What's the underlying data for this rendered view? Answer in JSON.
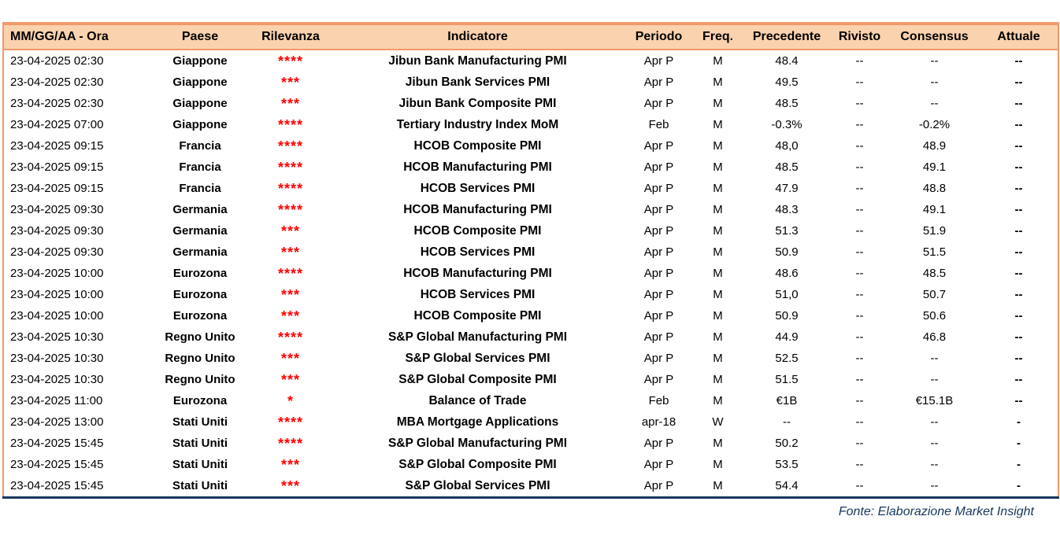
{
  "chart_data": {
    "type": "table",
    "columns": [
      "MM/GG/AA - Ora",
      "Paese",
      "Rilevanza",
      "Indicatore",
      "Periodo",
      "Freq.",
      "Precedente",
      "Rivisto",
      "Consensus",
      "Attuale"
    ],
    "rows": [
      [
        "23-04-2025 02:30",
        "Giappone",
        "****",
        "Jibun Bank Manufacturing PMI",
        "Apr P",
        "M",
        "48.4",
        "--",
        "--",
        "--"
      ],
      [
        "23-04-2025 02:30",
        "Giappone",
        "***",
        "Jibun Bank Services PMI",
        "Apr P",
        "M",
        "49.5",
        "--",
        "--",
        "--"
      ],
      [
        "23-04-2025 02:30",
        "Giappone",
        "***",
        "Jibun Bank Composite PMI",
        "Apr P",
        "M",
        "48.5",
        "--",
        "--",
        "--"
      ],
      [
        "23-04-2025 07:00",
        "Giappone",
        "****",
        "Tertiary Industry Index MoM",
        "Feb",
        "M",
        "-0.3%",
        "--",
        "-0.2%",
        "--"
      ],
      [
        "23-04-2025 09:15",
        "Francia",
        "****",
        "HCOB Composite PMI",
        "Apr P",
        "M",
        "48,0",
        "--",
        "48.9",
        "--"
      ],
      [
        "23-04-2025 09:15",
        "Francia",
        "****",
        "HCOB Manufacturing PMI",
        "Apr P",
        "M",
        "48.5",
        "--",
        "49.1",
        "--"
      ],
      [
        "23-04-2025 09:15",
        "Francia",
        "****",
        "HCOB Services PMI",
        "Apr P",
        "M",
        "47.9",
        "--",
        "48.8",
        "--"
      ],
      [
        "23-04-2025 09:30",
        "Germania",
        "****",
        "HCOB Manufacturing PMI",
        "Apr P",
        "M",
        "48.3",
        "--",
        "49.1",
        "--"
      ],
      [
        "23-04-2025 09:30",
        "Germania",
        "***",
        "HCOB Composite PMI",
        "Apr P",
        "M",
        "51.3",
        "--",
        "51.9",
        "--"
      ],
      [
        "23-04-2025 09:30",
        "Germania",
        "***",
        "HCOB Services PMI",
        "Apr P",
        "M",
        "50.9",
        "--",
        "51.5",
        "--"
      ],
      [
        "23-04-2025 10:00",
        "Eurozona",
        "****",
        "HCOB Manufacturing PMI",
        "Apr P",
        "M",
        "48.6",
        "--",
        "48.5",
        "--"
      ],
      [
        "23-04-2025 10:00",
        "Eurozona",
        "***",
        "HCOB Services PMI",
        "Apr P",
        "M",
        "51,0",
        "--",
        "50.7",
        "--"
      ],
      [
        "23-04-2025 10:00",
        "Eurozona",
        "***",
        "HCOB Composite PMI",
        "Apr P",
        "M",
        "50.9",
        "--",
        "50.6",
        "--"
      ],
      [
        "23-04-2025 10:30",
        "Regno Unito",
        "****",
        "S&P Global Manufacturing PMI",
        "Apr P",
        "M",
        "44.9",
        "--",
        "46.8",
        "--"
      ],
      [
        "23-04-2025 10:30",
        "Regno Unito",
        "***",
        "S&P Global Services PMI",
        "Apr P",
        "M",
        "52.5",
        "--",
        "--",
        "--"
      ],
      [
        "23-04-2025 10:30",
        "Regno Unito",
        "***",
        "S&P Global Composite PMI",
        "Apr P",
        "M",
        "51.5",
        "--",
        "--",
        "--"
      ],
      [
        "23-04-2025 11:00",
        "Eurozona",
        "*",
        "Balance of Trade",
        "Feb",
        "M",
        "€1B",
        "--",
        "€15.1B",
        "--"
      ],
      [
        "23-04-2025 13:00",
        "Stati Uniti",
        "****",
        "MBA Mortgage Applications",
        "apr-18",
        "W",
        "--",
        "--",
        "--",
        "-"
      ],
      [
        "23-04-2025 15:45",
        "Stati Uniti",
        "****",
        "S&P Global Manufacturing PMI",
        "Apr P",
        "M",
        "50.2",
        "--",
        "--",
        "-"
      ],
      [
        "23-04-2025 15:45",
        "Stati Uniti",
        "***",
        "S&P Global Composite PMI",
        "Apr P",
        "M",
        "53.5",
        "--",
        "--",
        "-"
      ],
      [
        "23-04-2025 15:45",
        "Stati Uniti",
        "***",
        "S&P Global Services PMI",
        "Apr P",
        "M",
        "54.4",
        "--",
        "--",
        "-"
      ]
    ],
    "title": "",
    "legend": null,
    "grid": false
  },
  "footer": {
    "source": "Fonte: Elaborazione Market Insight"
  },
  "colors": {
    "header_bg": "#FBD2AE",
    "border_orange": "#F0996B",
    "star_red": "#FF0000",
    "footer_blue": "#17375E",
    "bottom_border": "#17375E"
  }
}
